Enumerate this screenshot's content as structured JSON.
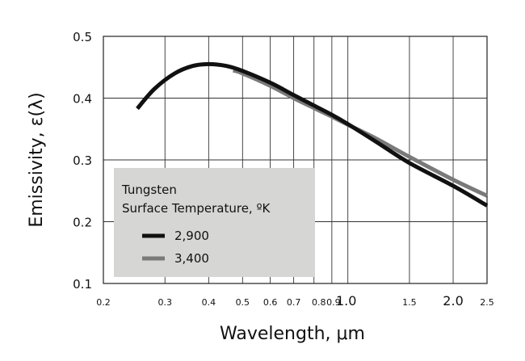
{
  "chart_data": {
    "type": "line",
    "xlabel": "Wavelength,  μm",
    "ylabel": "Emissivity, ε(λ)",
    "x_scale": "log",
    "xlim": [
      0.2,
      2.5
    ],
    "ylim": [
      0.1,
      0.5
    ],
    "grid": true,
    "x_ticks": [
      0.2,
      0.3,
      0.4,
      0.5,
      0.6,
      0.7,
      0.8,
      0.9,
      1.0,
      1.5,
      2.0,
      2.5
    ],
    "x_tick_labels": [
      "0.2",
      "0.3",
      "0.4",
      "0.5",
      "0.6",
      "0.7",
      "0.8",
      "0.9",
      "1.0",
      "1.5",
      "2.0",
      "2.5"
    ],
    "y_ticks": [
      0.1,
      0.2,
      0.3,
      0.4,
      0.5
    ],
    "y_tick_labels": [
      "0.1",
      "0.2",
      "0.3",
      "0.4",
      "0.5"
    ],
    "legend": {
      "title_line1": "Tungsten",
      "title_line2": "Surface Temperature, ºK",
      "placement": "bottom-left"
    },
    "series": [
      {
        "name": "2,900",
        "color": "#111111",
        "x": [
          0.25,
          0.28,
          0.32,
          0.36,
          0.4,
          0.45,
          0.5,
          0.6,
          0.7,
          0.8,
          0.9,
          1.0,
          1.2,
          1.5,
          2.0,
          2.5
        ],
        "y": [
          0.383,
          0.415,
          0.44,
          0.452,
          0.455,
          0.452,
          0.444,
          0.425,
          0.405,
          0.388,
          0.373,
          0.358,
          0.33,
          0.295,
          0.258,
          0.226
        ]
      },
      {
        "name": "3,400",
        "color": "#7a7a7a",
        "x": [
          0.47,
          0.5,
          0.6,
          0.7,
          0.8,
          0.9,
          1.0,
          1.2,
          1.5,
          2.0,
          2.5
        ],
        "y": [
          0.445,
          0.44,
          0.42,
          0.4,
          0.384,
          0.37,
          0.357,
          0.335,
          0.305,
          0.268,
          0.242
        ]
      }
    ]
  }
}
